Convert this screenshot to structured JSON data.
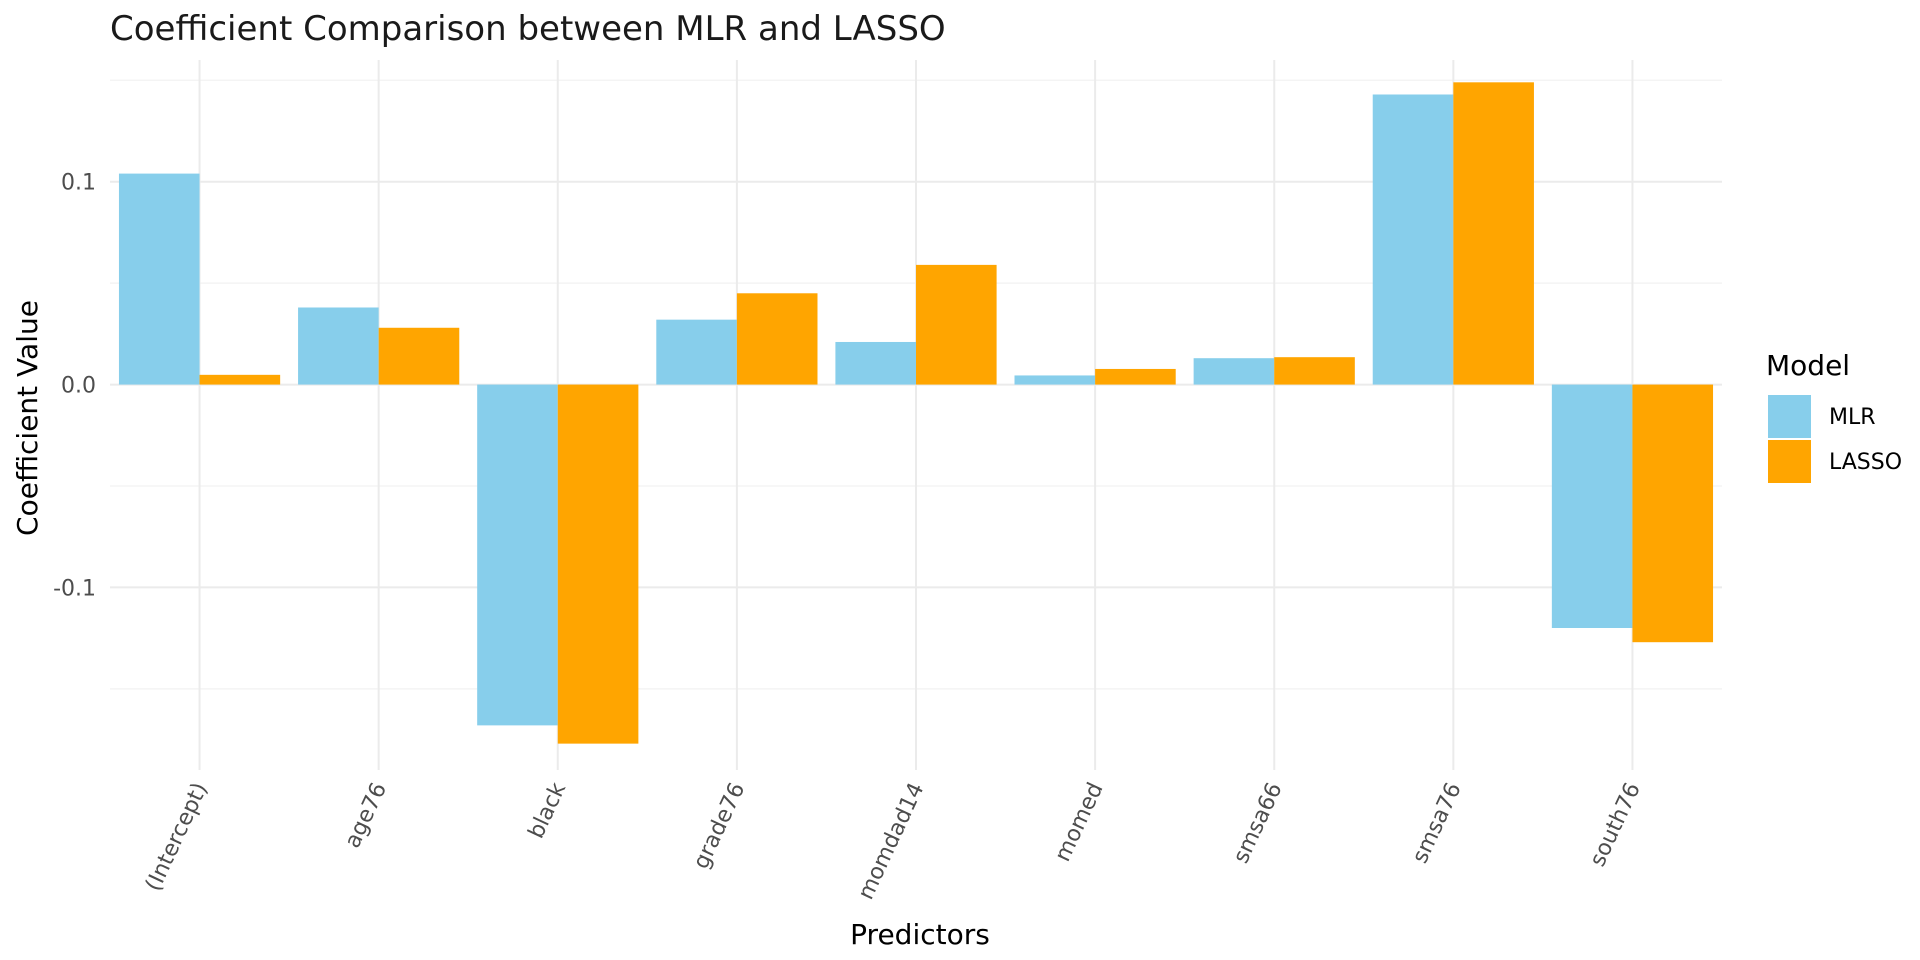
{
  "chart_data": {
    "type": "bar",
    "title": "Coefficient Comparison between MLR and LASSO",
    "xlabel": "Predictors",
    "ylabel": "Coefficient Value",
    "categories": [
      "(Intercept)",
      "age76",
      "black",
      "grade76",
      "momdad14",
      "momed",
      "smsa66",
      "smsa76",
      "south76"
    ],
    "series": [
      {
        "name": "MLR",
        "color": "#87CEEB",
        "values": [
          0.104,
          0.038,
          -0.168,
          0.032,
          0.021,
          0.0045,
          0.013,
          0.143,
          -0.12
        ]
      },
      {
        "name": "LASSO",
        "color": "#FFA500",
        "values": [
          0.0048,
          0.028,
          -0.177,
          0.045,
          0.059,
          0.0077,
          0.0135,
          0.149,
          -0.127
        ]
      }
    ],
    "ylim": [
      -0.19,
      0.16
    ],
    "yticks": [
      -0.1,
      0.0,
      0.1
    ],
    "ytick_labels": [
      "-0.1",
      "0.0",
      "0.1"
    ],
    "grid": true,
    "legend": {
      "title": "Model",
      "position": "right"
    }
  }
}
